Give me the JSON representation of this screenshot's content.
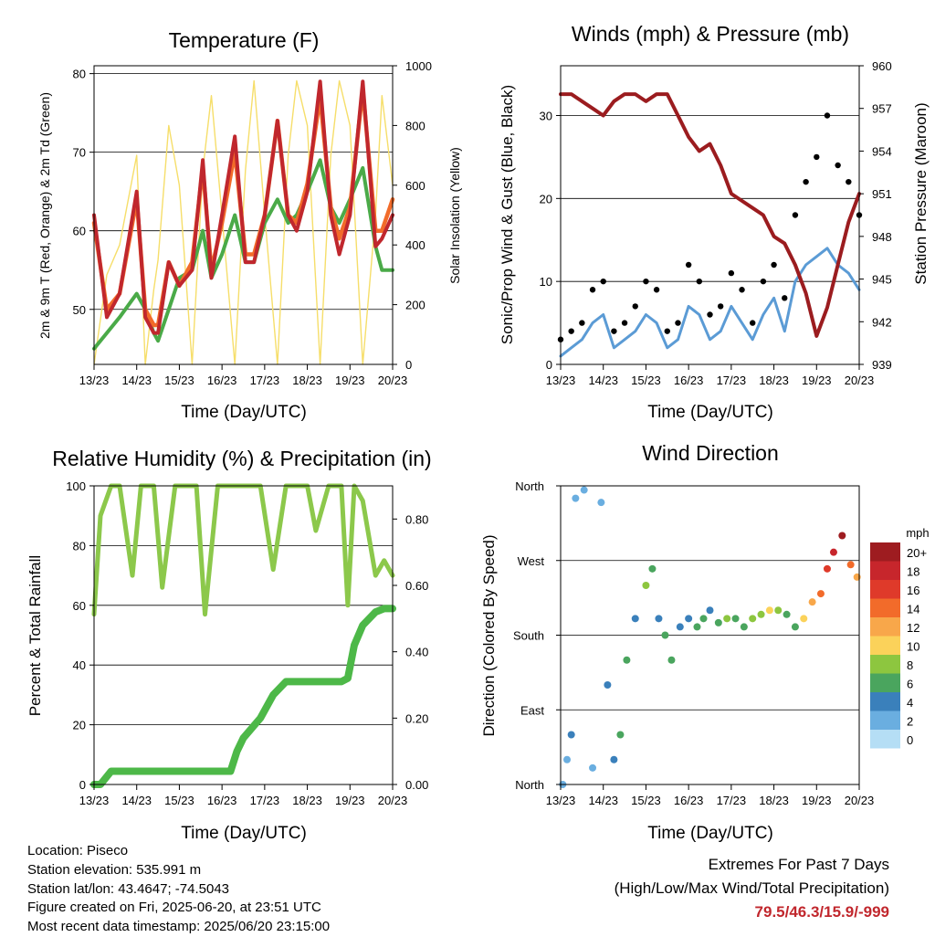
{
  "colors": {
    "t2m": "#c0272d",
    "t9m": "#f26b2a",
    "td": "#4aaa48",
    "solar": "#f6de6a",
    "gust": "#000000",
    "wind": "#5b9bd5",
    "pressure": "#9b1c1f",
    "rh": "#8cc84b",
    "precip": "#4db848"
  },
  "xticks": [
    "13/23",
    "14/23",
    "15/23",
    "16/23",
    "17/23",
    "18/23",
    "19/23",
    "20/23"
  ],
  "chart_data": [
    {
      "type": "line",
      "title": "Temperature (F)",
      "xlabel": "Time (Day/UTC)",
      "ylabel": "2m & 9m T (Red, Orange) & 2m Td (Green)",
      "y2label": "Solar Insolation (Yellow)",
      "ylim": [
        43,
        81
      ],
      "yticks": [
        "50",
        "60",
        "70",
        "80"
      ],
      "y2lim": [
        0,
        1000
      ],
      "y2ticks": [
        "0",
        "200",
        "400",
        "600",
        "800",
        "1000"
      ],
      "x": [
        0,
        0.3,
        0.6,
        1,
        1.2,
        1.4,
        1.5,
        1.75,
        2,
        2.3,
        2.55,
        2.75,
        3,
        3.3,
        3.55,
        3.75,
        4,
        4.3,
        4.55,
        4.75,
        5,
        5.3,
        5.55,
        5.75,
        6,
        6.3,
        6.6,
        6.75,
        7
      ],
      "series": [
        {
          "name": "2m T",
          "values": [
            62,
            49,
            52,
            65,
            49,
            47,
            47,
            56,
            53,
            55,
            69,
            54,
            62,
            72,
            56,
            56,
            62,
            74,
            62,
            60,
            65,
            79,
            62,
            57,
            62,
            79,
            58,
            59,
            62
          ]
        },
        {
          "name": "9m T",
          "values": [
            61,
            50,
            52,
            64,
            50,
            48,
            48,
            56,
            53,
            56,
            68,
            55,
            61,
            70,
            57,
            57,
            62,
            74,
            62,
            61,
            66,
            77,
            63,
            59,
            63,
            78,
            60,
            60,
            64
          ]
        },
        {
          "name": "2m Td",
          "values": [
            45,
            47,
            49,
            52,
            50,
            47,
            46,
            50,
            54,
            55,
            60,
            54,
            57,
            62,
            56,
            56,
            61,
            64,
            61,
            62,
            65,
            69,
            63,
            61,
            64,
            68,
            58,
            55,
            55
          ]
        },
        {
          "name": "Solar Insolation",
          "values": [
            0,
            300,
            400,
            700,
            0,
            250,
            350,
            800,
            600,
            0,
            650,
            900,
            500,
            0,
            650,
            950,
            500,
            0,
            700,
            950,
            800,
            0,
            700,
            950,
            800,
            0,
            500,
            900,
            600
          ]
        }
      ]
    },
    {
      "type": "line",
      "title": "Winds (mph) & Pressure (mb)",
      "xlabel": "Time (Day/UTC)",
      "ylabel": "Sonic/Prop Wind & Gust (Blue, Black)",
      "y2label": "Station Pressure (Maroon)",
      "ylim": [
        0,
        36
      ],
      "yticks": [
        "0",
        "10",
        "20",
        "30"
      ],
      "y2lim": [
        939,
        960
      ],
      "y2ticks": [
        "939",
        "942",
        "945",
        "948",
        "951",
        "954",
        "957",
        "960"
      ],
      "x": [
        0,
        0.25,
        0.5,
        0.75,
        1,
        1.25,
        1.5,
        1.75,
        2,
        2.25,
        2.5,
        2.75,
        3,
        3.25,
        3.5,
        3.75,
        4,
        4.25,
        4.5,
        4.75,
        5,
        5.25,
        5.5,
        5.75,
        6,
        6.25,
        6.5,
        6.75,
        7
      ],
      "series": [
        {
          "name": "Gust",
          "values": [
            3,
            4,
            5,
            9,
            10,
            4,
            5,
            7,
            10,
            9,
            4,
            5,
            12,
            10,
            6,
            7,
            11,
            9,
            5,
            10,
            12,
            8,
            18,
            22,
            25,
            30,
            24,
            22,
            18
          ]
        },
        {
          "name": "Wind",
          "values": [
            1,
            2,
            3,
            5,
            6,
            2,
            3,
            4,
            6,
            5,
            2,
            3,
            7,
            6,
            3,
            4,
            7,
            5,
            3,
            6,
            8,
            4,
            10,
            12,
            13,
            14,
            12,
            11,
            9
          ]
        },
        {
          "name": "Pressure",
          "values": [
            958,
            958,
            957.5,
            957,
            956.5,
            957.5,
            958,
            958,
            957.5,
            958,
            958,
            956.5,
            955,
            954,
            954.5,
            953,
            951,
            950.5,
            950,
            949.5,
            948,
            947.5,
            946,
            944,
            941,
            943,
            946,
            949,
            951
          ]
        }
      ]
    },
    {
      "type": "line",
      "title": "Relative Humidity (%) & Precipitation (in)",
      "xlabel": "Time (Day/UTC)",
      "ylabel": "Percent & Total Rainfall",
      "ylim": [
        0,
        100
      ],
      "yticks": [
        "0",
        "20",
        "40",
        "60",
        "80",
        "100"
      ],
      "y2lim": [
        0,
        0.9
      ],
      "y2ticks": [
        "0.00",
        "0.20",
        "0.40",
        "0.60",
        "0.80"
      ],
      "x": [
        0,
        0.15,
        0.4,
        0.6,
        0.9,
        1.1,
        1.4,
        1.6,
        1.9,
        2.2,
        2.4,
        2.6,
        2.9,
        3.2,
        3.35,
        3.5,
        3.9,
        4.2,
        4.5,
        4.8,
        5,
        5.2,
        5.5,
        5.8,
        5.95,
        6.1,
        6.3,
        6.6,
        6.8,
        7
      ],
      "series": [
        {
          "name": "Relative Humidity",
          "values": [
            57,
            90,
            100,
            100,
            70,
            100,
            100,
            66,
            100,
            100,
            100,
            57,
            100,
            100,
            100,
            100,
            100,
            72,
            100,
            100,
            100,
            85,
            100,
            100,
            60,
            100,
            95,
            70,
            75,
            70
          ]
        },
        {
          "name": "Total Rainfall",
          "values": [
            0,
            0,
            0.04,
            0.04,
            0.04,
            0.04,
            0.04,
            0.04,
            0.04,
            0.04,
            0.04,
            0.04,
            0.04,
            0.04,
            0.1,
            0.14,
            0.2,
            0.27,
            0.31,
            0.31,
            0.31,
            0.31,
            0.31,
            0.31,
            0.32,
            0.42,
            0.48,
            0.52,
            0.53,
            0.53
          ]
        }
      ]
    },
    {
      "type": "scatter",
      "title": "Wind Direction",
      "xlabel": "Time (Day/UTC)",
      "ylabel": "Direction (Colored By Speed)",
      "yticks": [
        "North",
        "East",
        "South",
        "West",
        "North"
      ],
      "legend": {
        "title": "mph",
        "labels": [
          "20+",
          "18",
          "16",
          "14",
          "12",
          "10",
          "8",
          "6",
          "4",
          "2",
          "0"
        ],
        "colors": [
          "#9e1c20",
          "#c7262c",
          "#df3a2a",
          "#f26b2a",
          "#f8a74a",
          "#fbd25a",
          "#8dc63f",
          "#4aa55e",
          "#3a80bb",
          "#6aaee0",
          "#b5def5"
        ]
      },
      "x": [
        0.05,
        0.15,
        0.25,
        0.35,
        0.55,
        0.75,
        0.95,
        1.1,
        1.25,
        1.4,
        1.55,
        1.75,
        2.0,
        2.15,
        2.3,
        2.45,
        2.6,
        2.8,
        3.0,
        3.2,
        3.35,
        3.5,
        3.7,
        3.9,
        4.1,
        4.3,
        4.5,
        4.7,
        4.9,
        5.1,
        5.3,
        5.5,
        5.7,
        5.9,
        6.1,
        6.25,
        6.4,
        6.6,
        6.8,
        6.95
      ],
      "y": [
        0,
        30,
        60,
        345,
        355,
        20,
        340,
        120,
        30,
        60,
        150,
        200,
        240,
        260,
        200,
        180,
        150,
        190,
        200,
        190,
        200,
        210,
        195,
        200,
        200,
        190,
        200,
        205,
        210,
        210,
        205,
        190,
        200,
        220,
        230,
        260,
        280,
        300,
        265,
        250
      ],
      "speed": [
        1,
        2,
        3,
        1,
        2,
        1,
        2,
        4,
        3,
        5,
        6,
        4,
        8,
        6,
        4,
        5,
        6,
        3,
        4,
        5,
        6,
        4,
        6,
        7,
        5,
        6,
        8,
        7,
        9,
        8,
        6,
        5,
        9,
        11,
        13,
        15,
        17,
        19,
        14,
        12
      ]
    }
  ],
  "info": {
    "location": "Location: Piseco",
    "elevation": "Station elevation: 535.991 m",
    "latlon": "Station lat/lon: 43.4647; -74.5043",
    "created": "Figure created on Fri, 2025-06-20, at 23:51 UTC",
    "recent": "Most recent data timestamp: 2025/06/20 23:15:00"
  },
  "extremes": {
    "line1": "Extremes For Past 7 Days",
    "line2": "(High/Low/Max Wind/Total Precipitation)",
    "values": "79.5/46.3/15.9/-999"
  }
}
